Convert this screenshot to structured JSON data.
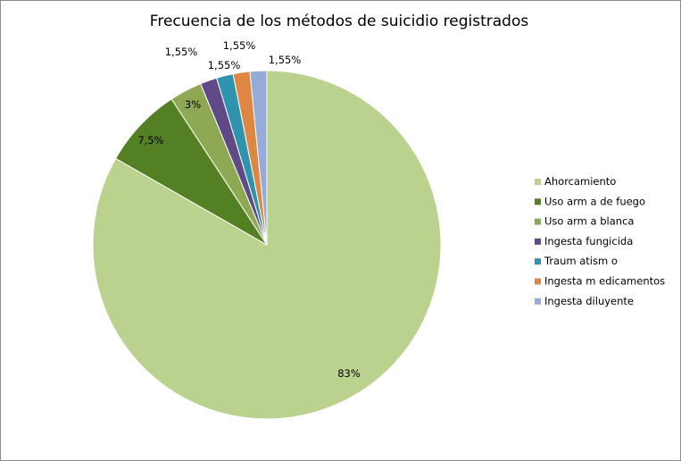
{
  "chart_data": {
    "type": "pie",
    "title": "Frecuencia de los métodos de suicidio registrados",
    "legend_position": "right",
    "start_angle_deg": 0,
    "direction": "clockwise",
    "slices": [
      {
        "name": "Ahorcamiento",
        "value": 83,
        "label": "83%",
        "color": "#BBD28F"
      },
      {
        "name": "Uso arm a de fuego",
        "value": 7.5,
        "label": "7,5%",
        "color": "#548024"
      },
      {
        "name": "Uso arm a blanca",
        "value": 3,
        "label": "3%",
        "color": "#8EA853"
      },
      {
        "name": "Ingesta fungicida",
        "value": 1.55,
        "label": "1,55%",
        "color": "#5F4A87"
      },
      {
        "name": "Traum atism o",
        "value": 1.55,
        "label": "1,55%",
        "color": "#2F93AE"
      },
      {
        "name": "Ingesta m edicamentos",
        "value": 1.55,
        "label": "1,55%",
        "color": "#DE8742"
      },
      {
        "name": "Ingesta diluyente",
        "value": 1.55,
        "label": "1,55%",
        "color": "#96ACD8"
      }
    ]
  }
}
